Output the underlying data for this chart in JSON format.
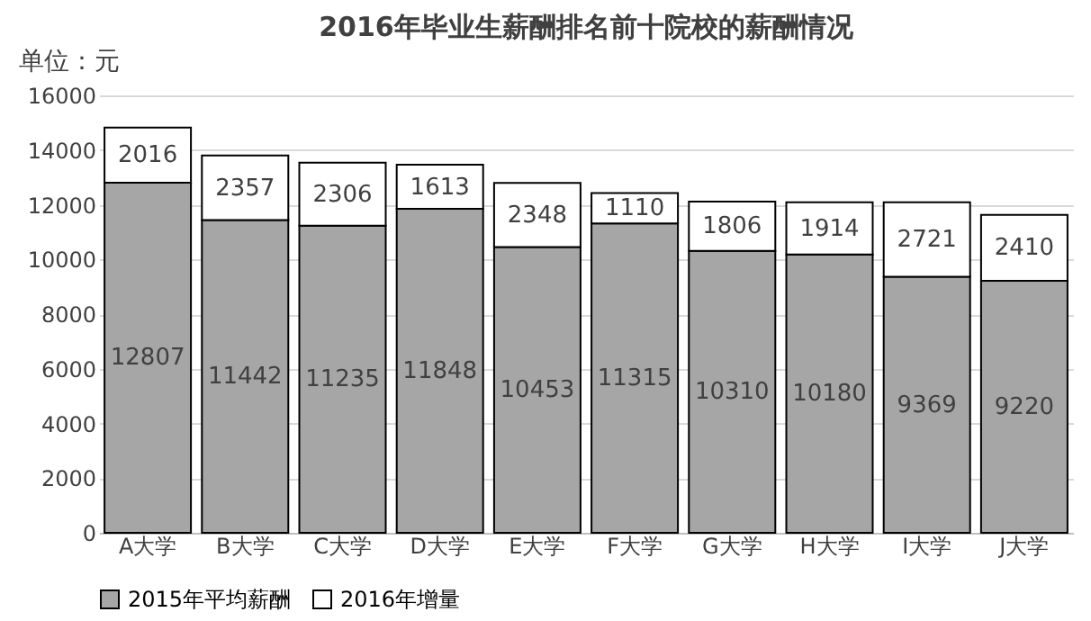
{
  "chart_data": {
    "type": "bar",
    "title": "2016年毕业生薪酬排名前十院校的薪酬情况",
    "ylabel": "单位：元",
    "categories": [
      "A大学",
      "B大学",
      "C大学",
      "D大学",
      "E大学",
      "F大学",
      "G大学",
      "H大学",
      "I大学",
      "J大学"
    ],
    "series": [
      {
        "name": "2015年平均薪酬",
        "color": "#a6a6a6",
        "values": [
          12807,
          11442,
          11235,
          11848,
          10453,
          11315,
          10310,
          10180,
          9369,
          9220
        ]
      },
      {
        "name": "2016年增量",
        "color": "#ffffff",
        "values": [
          2016,
          2357,
          2306,
          1613,
          2348,
          1110,
          1806,
          1914,
          2721,
          2410
        ]
      }
    ],
    "stacked": true,
    "ylim": [
      0,
      16000
    ],
    "yticks": [
      0,
      2000,
      4000,
      6000,
      8000,
      10000,
      12000,
      14000,
      16000
    ],
    "grid": "y",
    "legend": "bottom",
    "data_labels": true
  }
}
